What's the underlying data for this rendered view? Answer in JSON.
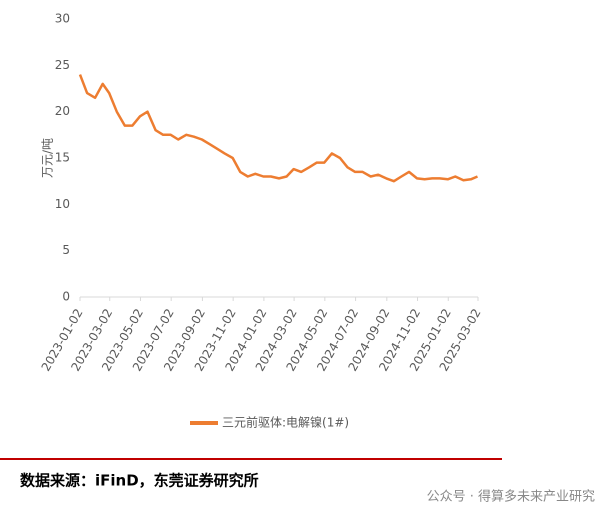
{
  "chart_data": {
    "type": "line",
    "y_label": "万元/吨",
    "x": [
      "2023-01-02",
      "2023-01-16",
      "2023-02-01",
      "2023-02-16",
      "2023-03-01",
      "2023-03-16",
      "2023-04-01",
      "2023-04-16",
      "2023-05-01",
      "2023-05-16",
      "2023-06-01",
      "2023-06-16",
      "2023-07-01",
      "2023-07-16",
      "2023-08-01",
      "2023-08-16",
      "2023-09-01",
      "2023-09-16",
      "2023-10-01",
      "2023-10-16",
      "2023-11-01",
      "2023-11-16",
      "2023-12-01",
      "2023-12-16",
      "2024-01-01",
      "2024-01-16",
      "2024-02-01",
      "2024-02-16",
      "2024-03-01",
      "2024-03-16",
      "2024-04-01",
      "2024-04-16",
      "2024-05-01",
      "2024-05-16",
      "2024-06-01",
      "2024-06-16",
      "2024-07-01",
      "2024-07-16",
      "2024-08-01",
      "2024-08-16",
      "2024-09-01",
      "2024-09-16",
      "2024-10-01",
      "2024-10-16",
      "2024-11-01",
      "2024-11-16",
      "2024-12-01",
      "2024-12-16",
      "2025-01-01",
      "2025-01-16",
      "2025-02-01",
      "2025-02-16",
      "2025-03-01"
    ],
    "series": [
      {
        "name": "三元前驱体:电解镍(1#)",
        "color": "#ed7d31",
        "values": [
          24,
          22,
          21.5,
          23,
          22,
          20,
          18.5,
          18.5,
          19.5,
          20,
          18,
          17.5,
          17.5,
          17,
          17.5,
          17.3,
          17,
          16.5,
          16,
          15.5,
          15,
          13.5,
          13,
          13.3,
          13,
          13,
          12.8,
          13,
          13.8,
          13.5,
          14,
          14.5,
          14.5,
          15.5,
          15,
          14,
          13.5,
          13.5,
          13,
          13.2,
          12.8,
          12.5,
          13,
          13.5,
          12.8,
          12.7,
          12.8,
          12.8,
          12.7,
          13,
          12.6,
          12.7,
          13
        ]
      }
    ],
    "xlim": [
      "2023-01-02",
      "2025-03-02"
    ],
    "xticks": [
      "2023-01-02",
      "2023-03-02",
      "2023-05-02",
      "2023-07-02",
      "2023-09-02",
      "2023-11-02",
      "2024-01-02",
      "2024-03-02",
      "2024-05-02",
      "2024-07-02",
      "2024-09-02",
      "2024-11-02",
      "2025-01-02",
      "2025-03-02"
    ],
    "ylim": [
      0,
      30
    ],
    "yticks": [
      0,
      5,
      10,
      15,
      20,
      25,
      30
    ],
    "grid": false
  },
  "source": "数据来源：iFinD，东莞证券研究所",
  "watermark": "公众号 · 得算多未来产业研究"
}
